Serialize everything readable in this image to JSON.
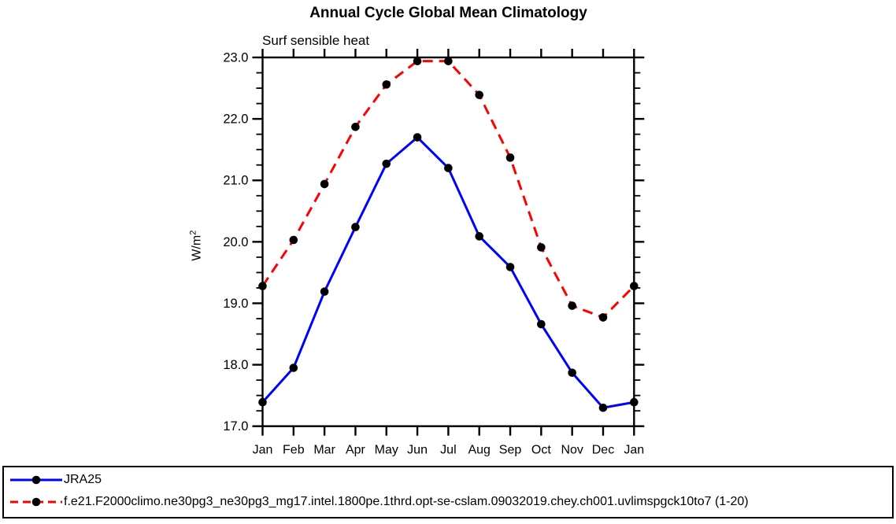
{
  "header": {
    "title": "Annual Cycle Global Mean Climatology",
    "subtitle": "Surf sensible heat"
  },
  "y_axis": {
    "label_base": "W/m",
    "label_exponent": "2"
  },
  "chart_data": {
    "type": "line",
    "title": "Annual Cycle Global Mean Climatology",
    "subtitle": "Surf sensible heat",
    "ylabel": "W/m^2",
    "x_categories": [
      "Jan",
      "Feb",
      "Mar",
      "Apr",
      "May",
      "Jun",
      "Jul",
      "Aug",
      "Sep",
      "Oct",
      "Nov",
      "Dec",
      "Jan"
    ],
    "ylim": [
      17.0,
      23.0
    ],
    "ytick_step": 1.0,
    "y_minor_step": 0.25,
    "ytick_labels": [
      "17.0",
      "18.0",
      "19.0",
      "20.0",
      "21.0",
      "22.0",
      "23.0"
    ],
    "grid": false,
    "legend_position": "bottom-box",
    "axis_color": "#000000",
    "marker": "filled-circle",
    "marker_color": "#000000",
    "series": [
      {
        "name": "JRA25",
        "color": "#0000ff",
        "line_style": "solid",
        "values": [
          17.39,
          17.95,
          19.19,
          20.24,
          21.27,
          21.7,
          21.2,
          20.09,
          19.59,
          18.66,
          17.87,
          17.3,
          17.39
        ]
      },
      {
        "name": "f.e21.F2000climo.ne30pg3_ne30pg3_mg17.intel.1800pe.1thrd.opt-se-cslam.09032019.chey.ch001.uvlimspgck10to7 (1-20)",
        "color": "#ff0000",
        "line_style": "dashed",
        "values": [
          19.28,
          20.03,
          20.94,
          21.87,
          22.56,
          22.94,
          22.94,
          22.39,
          21.37,
          19.91,
          18.96,
          18.77,
          19.28
        ]
      }
    ]
  }
}
